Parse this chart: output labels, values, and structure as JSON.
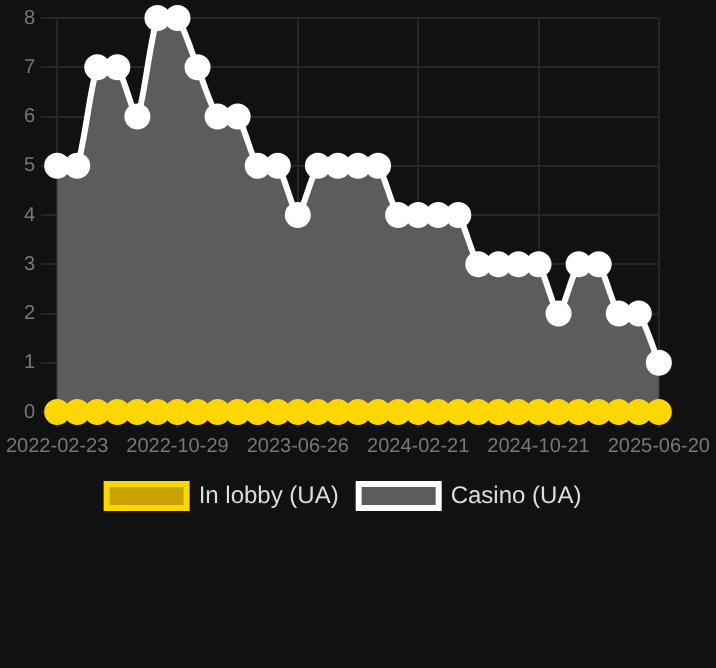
{
  "chart_data": {
    "type": "line",
    "categories": [
      "2022-02-23",
      null,
      null,
      null,
      null,
      null,
      "2022-10-29",
      null,
      null,
      null,
      null,
      null,
      "2023-06-26",
      null,
      null,
      null,
      null,
      null,
      "2024-02-21",
      null,
      null,
      null,
      null,
      null,
      "2024-10-21",
      null,
      null,
      null,
      null,
      null,
      "2025-06-20"
    ],
    "series": [
      {
        "name": "In lobby (UA)",
        "type": "line",
        "color": "#ffd700",
        "values": [
          0,
          0,
          0,
          0,
          0,
          0,
          0,
          0,
          0,
          0,
          0,
          0,
          0,
          0,
          0,
          0,
          0,
          0,
          0,
          0,
          0,
          0,
          0,
          0,
          0,
          0,
          0,
          0,
          0,
          0,
          0
        ]
      },
      {
        "name": "Casino (UA)",
        "type": "area",
        "color": "#ffffff",
        "values": [
          5,
          5,
          7,
          7,
          6,
          8,
          8,
          7,
          6,
          6,
          5,
          5,
          4,
          5,
          5,
          5,
          5,
          4,
          4,
          4,
          4,
          3,
          3,
          3,
          3,
          2,
          3,
          3,
          2,
          2,
          1
        ]
      }
    ],
    "ylim": [
      0,
      8
    ],
    "yticks": [
      0,
      1,
      2,
      3,
      4,
      5,
      6,
      7,
      8
    ],
    "grid": true,
    "legend": "bottom",
    "marker": "circle"
  }
}
